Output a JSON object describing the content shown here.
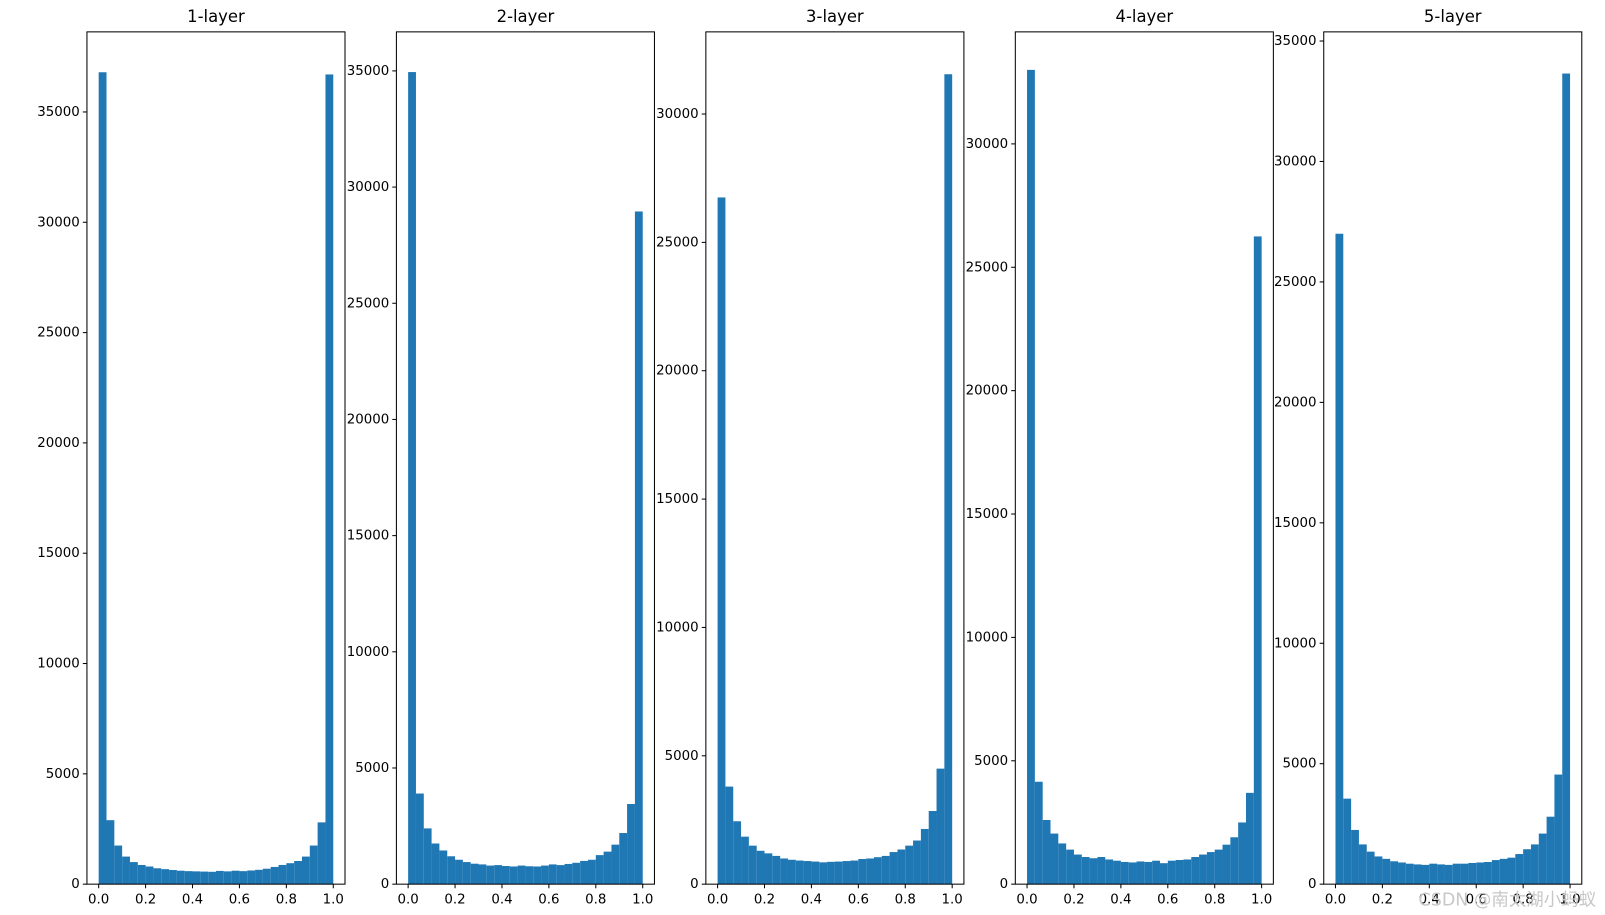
{
  "chart_data": [
    {
      "type": "histogram",
      "title": "1-layer",
      "color": "#1f77b4",
      "bins": [
        0,
        0.0333,
        0.0667,
        0.1,
        0.1333,
        0.1667,
        0.2,
        0.2333,
        0.2667,
        0.3,
        0.3333,
        0.3667,
        0.4,
        0.4333,
        0.4667,
        0.5,
        0.5333,
        0.5667,
        0.6,
        0.6333,
        0.6667,
        0.7,
        0.7333,
        0.7667,
        0.8,
        0.8333,
        0.8667,
        0.9,
        0.9333,
        0.9667,
        1
      ],
      "values": [
        36800,
        2900,
        1750,
        1250,
        1000,
        870,
        800,
        720,
        680,
        640,
        610,
        590,
        580,
        570,
        560,
        600,
        580,
        610,
        590,
        620,
        650,
        700,
        780,
        870,
        950,
        1050,
        1250,
        1750,
        2800,
        36700
      ],
      "xlim": [
        -0.05,
        1.05
      ],
      "ylim": [
        0,
        38630
      ],
      "xticks": [
        {
          "value": 0,
          "label": "0.0"
        },
        0.2,
        0.4,
        0.6,
        0.8,
        {
          "value": 1,
          "label": "1.0"
        }
      ],
      "yticks": [
        0,
        5000,
        10000,
        15000,
        20000,
        25000,
        30000,
        35000
      ]
    },
    {
      "type": "histogram",
      "title": "2-layer",
      "color": "#1f77b4",
      "bins": [
        0,
        0.0333,
        0.0667,
        0.1,
        0.1333,
        0.1667,
        0.2,
        0.2333,
        0.2667,
        0.3,
        0.3333,
        0.3667,
        0.4,
        0.4333,
        0.4667,
        0.5,
        0.5333,
        0.5667,
        0.6,
        0.6333,
        0.6667,
        0.7,
        0.7333,
        0.7667,
        0.8,
        0.8333,
        0.8667,
        0.9,
        0.9333,
        0.9667,
        1
      ],
      "values": [
        34950,
        3900,
        2400,
        1750,
        1450,
        1200,
        1050,
        950,
        880,
        850,
        800,
        820,
        780,
        760,
        800,
        770,
        760,
        800,
        850,
        820,
        870,
        920,
        1000,
        1050,
        1250,
        1400,
        1700,
        2200,
        3450,
        28950
      ],
      "xlim": [
        -0.05,
        1.05
      ],
      "ylim": [
        0,
        36680
      ],
      "xticks": [
        {
          "value": 0,
          "label": "0.0"
        },
        0.2,
        0.4,
        0.6,
        0.8,
        {
          "value": 1,
          "label": "1.0"
        }
      ],
      "yticks": [
        0,
        5000,
        10000,
        15000,
        20000,
        25000,
        30000,
        35000
      ]
    },
    {
      "type": "histogram",
      "title": "3-layer",
      "color": "#1f77b4",
      "bins": [
        0,
        0.0333,
        0.0667,
        0.1,
        0.1333,
        0.1667,
        0.2,
        0.2333,
        0.2667,
        0.3,
        0.3333,
        0.3667,
        0.4,
        0.4333,
        0.4667,
        0.5,
        0.5333,
        0.5667,
        0.6,
        0.6333,
        0.6667,
        0.7,
        0.7333,
        0.7667,
        0.8,
        0.8333,
        0.8667,
        0.9,
        0.9333,
        0.9667,
        1
      ],
      "values": [
        26750,
        3800,
        2450,
        1850,
        1500,
        1300,
        1200,
        1100,
        1000,
        950,
        920,
        900,
        880,
        850,
        870,
        880,
        900,
        920,
        980,
        1000,
        1050,
        1100,
        1250,
        1350,
        1500,
        1700,
        2150,
        2850,
        4500,
        31550
      ],
      "xlim": [
        -0.05,
        1.05
      ],
      "ylim": [
        0,
        33200
      ],
      "xticks": [
        {
          "value": 0,
          "label": "0.0"
        },
        0.2,
        0.4,
        0.6,
        0.8,
        {
          "value": 1,
          "label": "1.0"
        }
      ],
      "yticks": [
        0,
        5000,
        10000,
        15000,
        20000,
        25000,
        30000
      ]
    },
    {
      "type": "histogram",
      "title": "4-layer",
      "color": "#1f77b4",
      "bins": [
        0,
        0.0333,
        0.0667,
        0.1,
        0.1333,
        0.1667,
        0.2,
        0.2333,
        0.2667,
        0.3,
        0.3333,
        0.3667,
        0.4,
        0.4333,
        0.4667,
        0.5,
        0.5333,
        0.5667,
        0.6,
        0.6333,
        0.6667,
        0.7,
        0.7333,
        0.7667,
        0.8,
        0.8333,
        0.8667,
        0.9,
        0.9333,
        0.9667,
        1
      ],
      "values": [
        33000,
        4150,
        2600,
        2050,
        1650,
        1400,
        1200,
        1100,
        1050,
        1100,
        1000,
        950,
        900,
        880,
        920,
        900,
        950,
        850,
        950,
        980,
        1000,
        1100,
        1200,
        1300,
        1400,
        1600,
        1900,
        2500,
        3700,
        26250
      ],
      "xlim": [
        -0.05,
        1.05
      ],
      "ylim": [
        0,
        34540
      ],
      "xticks": [
        {
          "value": 0,
          "label": "0.0"
        },
        0.2,
        0.4,
        0.6,
        0.8,
        {
          "value": 1,
          "label": "1.0"
        }
      ],
      "yticks": [
        0,
        5000,
        10000,
        15000,
        20000,
        25000,
        30000
      ]
    },
    {
      "type": "histogram",
      "title": "5-layer",
      "color": "#1f77b4",
      "bins": [
        0,
        0.0333,
        0.0667,
        0.1,
        0.1333,
        0.1667,
        0.2,
        0.2333,
        0.2667,
        0.3,
        0.3333,
        0.3667,
        0.4,
        0.4333,
        0.4667,
        0.5,
        0.5333,
        0.5667,
        0.6,
        0.6333,
        0.6667,
        0.7,
        0.7333,
        0.7667,
        0.8,
        0.8333,
        0.8667,
        0.9,
        0.9333,
        0.9667,
        1
      ],
      "values": [
        27000,
        3550,
        2250,
        1650,
        1350,
        1150,
        1050,
        950,
        900,
        850,
        820,
        800,
        850,
        820,
        800,
        850,
        850,
        880,
        900,
        920,
        1000,
        1050,
        1100,
        1250,
        1450,
        1650,
        2100,
        2800,
        4550,
        33650
      ],
      "xlim": [
        -0.05,
        1.05
      ],
      "ylim": [
        0,
        35380
      ],
      "xticks": [
        {
          "value": 0,
          "label": "0.0"
        },
        0.2,
        0.4,
        0.6,
        0.8,
        {
          "value": 1,
          "label": "1.0"
        }
      ],
      "yticks": [
        0,
        5000,
        10000,
        15000,
        20000,
        25000,
        30000,
        35000
      ]
    }
  ],
  "watermark": "CSDN @南太湖小蚂蚁"
}
